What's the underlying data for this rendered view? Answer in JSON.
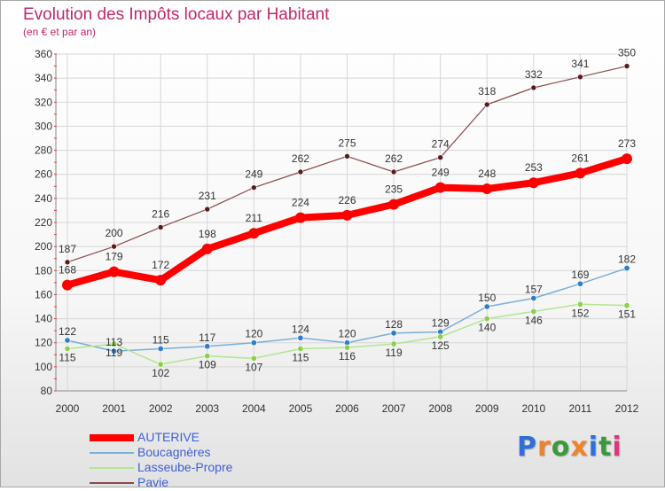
{
  "title": "Evolution des Impôts locaux par Habitant",
  "subtitle": "(en € et par an)",
  "logo": {
    "letters": [
      "P",
      "r",
      "o",
      "x",
      "i",
      "t",
      "i"
    ],
    "colors": [
      "#2f6fd6",
      "#f0832a",
      "#3a9a3a",
      "#f0832a",
      "#2f6fd6",
      "#3a9a3a",
      "#d83a7a"
    ]
  },
  "chart_data": {
    "type": "line",
    "x": [
      "2000",
      "2001",
      "2002",
      "2003",
      "2004",
      "2005",
      "2006",
      "2007",
      "2008",
      "2009",
      "2010",
      "2011",
      "2012"
    ],
    "ylim": [
      80,
      360
    ],
    "yticks": [
      80,
      100,
      120,
      140,
      160,
      180,
      200,
      220,
      240,
      260,
      280,
      300,
      320,
      340,
      360
    ],
    "grid": true,
    "legend_position": "bottom-left",
    "series": [
      {
        "name": "AUTERIVE",
        "color": "#ff0000",
        "marker_color": "#ff0000",
        "values": [
          168,
          179,
          172,
          198,
          211,
          224,
          226,
          235,
          249,
          248,
          253,
          261,
          273
        ]
      },
      {
        "name": "Boucagnères",
        "color": "#7aaed8",
        "marker_color": "#2f7ec8",
        "values": [
          122,
          113,
          115,
          117,
          120,
          124,
          120,
          128,
          129,
          150,
          157,
          169,
          182
        ],
        "labels": [
          "122",
          "113",
          "115",
          "117",
          "120",
          "124",
          "120",
          "128",
          "129",
          "150",
          "157",
          "169",
          "182"
        ]
      },
      {
        "name": "Lasseube-Propre",
        "color": "#b3e58f",
        "marker_color": "#8ad04b",
        "values": [
          115,
          119,
          102,
          109,
          107,
          115,
          116,
          119,
          125,
          140,
          146,
          152,
          151
        ],
        "labels": [
          "115",
          "119",
          "102",
          "109",
          "107",
          "115",
          "116",
          "119",
          "125",
          "140",
          "146",
          "152",
          "151"
        ]
      },
      {
        "name": "Pavie",
        "color": "#8a4a4a",
        "marker_color": "#5a1a1a",
        "values": [
          187,
          200,
          216,
          231,
          249,
          262,
          275,
          262,
          274,
          318,
          332,
          341,
          350
        ]
      }
    ]
  }
}
